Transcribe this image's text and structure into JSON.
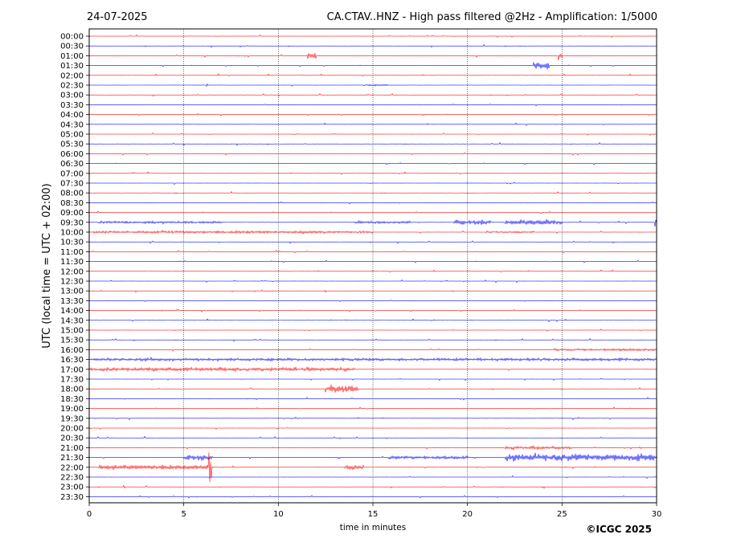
{
  "header": {
    "date": "24-07-2025",
    "title": "CA.CTAV..HNZ - High pass filtered @2Hz - Amplification: 1/5000"
  },
  "footer": {
    "copyright": "©ICGC 2025"
  },
  "colors": {
    "trace_a": "#ff0000",
    "trace_b": "#0000ff",
    "grid": "#000000",
    "axis": "#000000"
  },
  "chart_data": {
    "type": "line",
    "title": "CA.CTAV..HNZ - High pass filtered @2Hz - Amplification: 1/5000",
    "xlabel": "time in minutes",
    "ylabel": "UTC (local time = UTC + 02:00)",
    "xlim": [
      0,
      30
    ],
    "xticks": [
      0,
      5,
      10,
      15,
      20,
      25,
      30
    ],
    "vertical_gridlines_at": [
      5,
      10,
      15,
      20,
      25
    ],
    "row_colors_alternate": [
      "red",
      "blue"
    ],
    "rows": [
      "00:00",
      "00:30",
      "01:00",
      "01:30",
      "02:00",
      "02:30",
      "03:00",
      "03:30",
      "04:00",
      "04:30",
      "05:00",
      "05:30",
      "06:00",
      "06:30",
      "07:00",
      "07:30",
      "08:00",
      "08:30",
      "09:00",
      "09:30",
      "10:00",
      "10:30",
      "11:00",
      "11:30",
      "12:00",
      "12:30",
      "13:00",
      "13:30",
      "14:00",
      "14:30",
      "15:00",
      "15:30",
      "16:00",
      "16:30",
      "17:00",
      "17:30",
      "18:00",
      "18:30",
      "19:00",
      "19:30",
      "20:00",
      "20:30",
      "21:00",
      "21:30",
      "22:00",
      "22:30",
      "23:00",
      "23:30"
    ],
    "events": [
      {
        "row": "01:00",
        "start_min": 11.5,
        "end_min": 12.0,
        "amp": 0.9
      },
      {
        "row": "01:00",
        "start_min": 24.8,
        "end_min": 25.0,
        "amp": 1.0
      },
      {
        "row": "01:30",
        "start_min": 23.5,
        "end_min": 24.3,
        "amp": 0.9
      },
      {
        "row": "02:30",
        "start_min": 14.6,
        "end_min": 15.8,
        "amp": 0.25
      },
      {
        "row": "09:30",
        "start_min": 0.5,
        "end_min": 7.0,
        "amp": 0.3
      },
      {
        "row": "09:30",
        "start_min": 14.0,
        "end_min": 17.0,
        "amp": 0.3
      },
      {
        "row": "09:30",
        "start_min": 19.3,
        "end_min": 21.2,
        "amp": 0.6
      },
      {
        "row": "09:30",
        "start_min": 22.0,
        "end_min": 25.0,
        "amp": 0.6
      },
      {
        "row": "09:30",
        "start_min": 29.9,
        "end_min": 30.0,
        "amp": 1.0
      },
      {
        "row": "10:00",
        "start_min": 0.2,
        "end_min": 15.0,
        "amp": 0.3
      },
      {
        "row": "10:00",
        "start_min": 21.0,
        "end_min": 23.5,
        "amp": 0.25
      },
      {
        "row": "16:00",
        "start_min": 24.5,
        "end_min": 30.0,
        "amp": 0.3
      },
      {
        "row": "16:30",
        "start_min": 0.0,
        "end_min": 30.0,
        "amp": 0.35
      },
      {
        "row": "17:00",
        "start_min": 0.0,
        "end_min": 14.0,
        "amp": 0.45
      },
      {
        "row": "18:00",
        "start_min": 12.5,
        "end_min": 14.2,
        "amp": 0.9
      },
      {
        "row": "21:00",
        "start_min": 22.0,
        "end_min": 25.5,
        "amp": 0.4
      },
      {
        "row": "21:30",
        "start_min": 5.0,
        "end_min": 6.5,
        "amp": 0.7
      },
      {
        "row": "21:30",
        "start_min": 15.8,
        "end_min": 20.0,
        "amp": 0.4
      },
      {
        "row": "21:30",
        "start_min": 22.0,
        "end_min": 30.0,
        "amp": 0.9
      },
      {
        "row": "22:00",
        "start_min": 0.5,
        "end_min": 6.5,
        "amp": 0.6
      },
      {
        "row": "22:00",
        "start_min": 13.5,
        "end_min": 14.5,
        "amp": 0.6
      },
      {
        "row": "22:00",
        "start_min": 6.35,
        "end_min": 6.45,
        "amp": 6.0
      }
    ]
  }
}
